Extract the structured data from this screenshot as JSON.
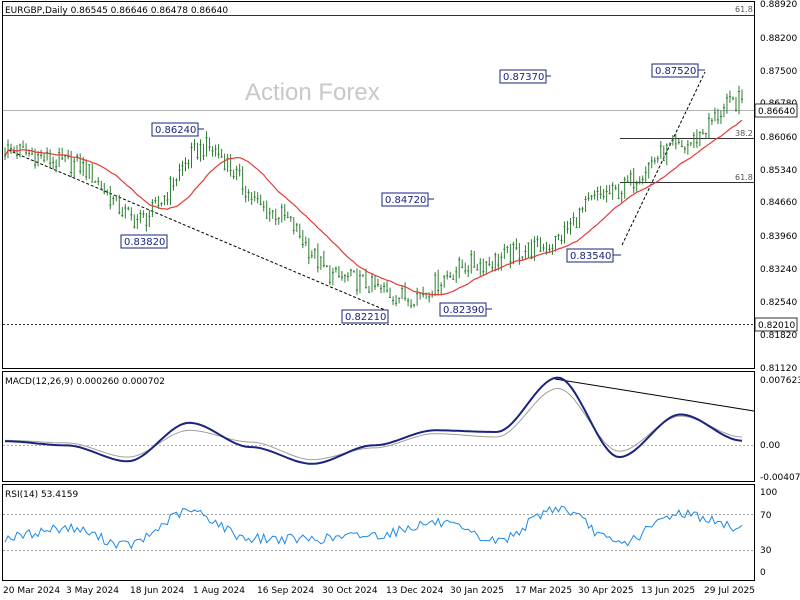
{
  "watermark": "Action Forex",
  "price_panel": {
    "header": "EURGBP,Daily  0.86545 0.86646 0.86478 0.86640",
    "y_ticks": [
      "0.88920",
      "0.88200",
      "0.87500",
      "0.86780",
      "0.86060",
      "0.85340",
      "0.84660",
      "0.83960",
      "0.83240",
      "0.82540",
      "0.81820",
      "0.81120"
    ],
    "current_price": "0.86640",
    "support_price": "0.82010",
    "fib_labels": [
      "61.8",
      "38.2",
      "61.8"
    ],
    "annotations": [
      "0.86240",
      "0.83820",
      "0.84720",
      "0.82210",
      "0.87370",
      "0.82390",
      "0.83540",
      "0.87520"
    ]
  },
  "macd_panel": {
    "header": "MACD(12,26,9) 0.000260 0.000702",
    "y_ticks": [
      "0.007623",
      "0.00",
      "-0.004073"
    ]
  },
  "rsi_panel": {
    "header": "RSI(14) 53.4159",
    "y_ticks": [
      "100",
      "70",
      "30",
      "0"
    ]
  },
  "x_ticks": [
    "20 Mar 2024",
    "3 May 2024",
    "18 Jun 2024",
    "1 Aug 2024",
    "16 Sep 2024",
    "30 Oct 2024",
    "13 Dec 2024",
    "30 Jan 2025",
    "17 Mar 2025",
    "30 Apr 2025",
    "13 Jun 2025",
    "29 Jul 2025"
  ],
  "colors": {
    "candles": "#2e7d32",
    "ma": "#e53935",
    "macd": "#1a237e",
    "signal": "#9e9e9e",
    "rsi": "#1e88e5",
    "label_border": "#1a237e"
  },
  "chart_data": [
    {
      "type": "candlestick",
      "title": "EURGBP,Daily",
      "ohlc_last": {
        "open": 0.86545,
        "high": 0.86646,
        "low": 0.86478,
        "close": 0.8664
      },
      "ylim": [
        0.8112,
        0.8892
      ],
      "x": [
        "20 Mar 2024",
        "3 May 2024",
        "18 Jun 2024",
        "1 Aug 2024",
        "16 Sep 2024",
        "30 Oct 2024",
        "13 Dec 2024",
        "30 Jan 2025",
        "17 Mar 2025",
        "30 Apr 2025",
        "13 Jun 2025",
        "29 Jul 2025"
      ],
      "series": [
        {
          "name": "Close (approx.)",
          "values": [
            0.858,
            0.855,
            0.843,
            0.8585,
            0.8445,
            0.8305,
            0.8265,
            0.8335,
            0.837,
            0.8485,
            0.858,
            0.8685
          ]
        }
      ],
      "swing_points": [
        0.8624,
        0.8382,
        0.8472,
        0.8221,
        0.8737,
        0.8239,
        0.8354,
        0.8752
      ],
      "horizontal_levels": [
        0.8664,
        0.8201
      ]
    },
    {
      "type": "line",
      "title": "MACD(12,26,9)",
      "ylim": [
        -0.004073,
        0.007623
      ],
      "series": [
        {
          "name": "MACD",
          "values": [
            0.0002,
            -0.0003,
            -0.0022,
            0.0024,
            -0.0005,
            -0.0025,
            -0.0003,
            0.0015,
            0.0013,
            0.0078,
            -0.0017,
            0.0034,
            0.00026
          ]
        },
        {
          "name": "Signal",
          "values": [
            0.0003,
            0.0,
            -0.0017,
            0.0015,
            0.0001,
            -0.002,
            -0.0006,
            0.0011,
            0.0007,
            0.0065,
            -0.001,
            0.0032,
            0.000702
          ]
        }
      ]
    },
    {
      "type": "line",
      "title": "RSI(14)",
      "ylim": [
        0,
        100
      ],
      "series": [
        {
          "name": "RSI",
          "values": [
            42,
            54,
            33,
            74,
            41,
            40,
            45,
            60,
            38,
            78,
            35,
            72,
            53.4159
          ]
        }
      ]
    }
  ]
}
